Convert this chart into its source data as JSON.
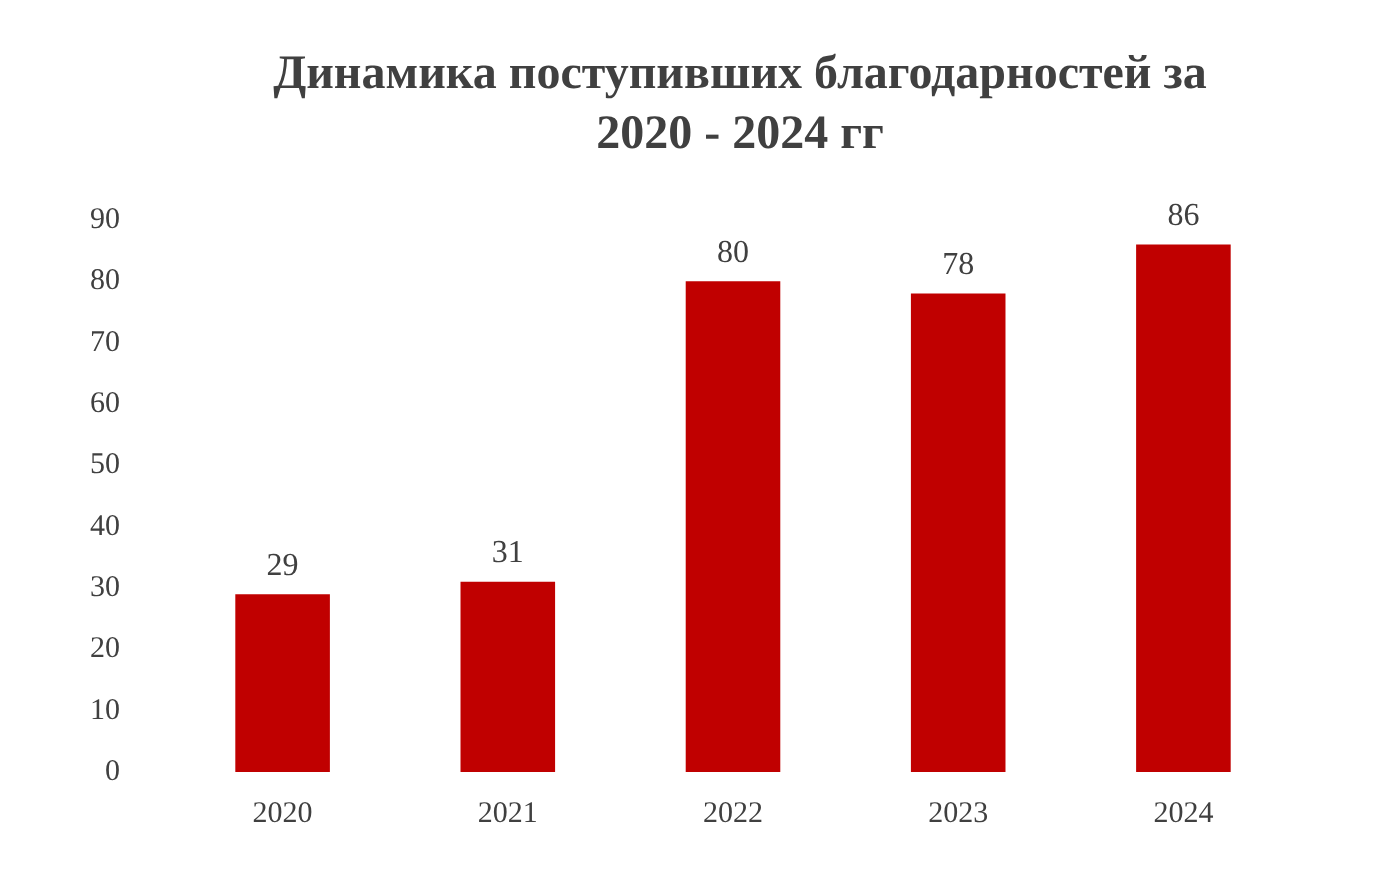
{
  "chart_data": {
    "type": "bar",
    "title": "Динамика поступивших благодарностей за 2020 - 2024 гг",
    "categories": [
      "2020",
      "2021",
      "2022",
      "2023",
      "2024"
    ],
    "values": [
      29,
      31,
      80,
      78,
      86
    ],
    "color": "#c00000",
    "ylim": [
      0,
      90
    ],
    "yticks": [
      0,
      10,
      20,
      30,
      40,
      50,
      60,
      70,
      80,
      90
    ],
    "grid": false,
    "data_labels": true
  }
}
